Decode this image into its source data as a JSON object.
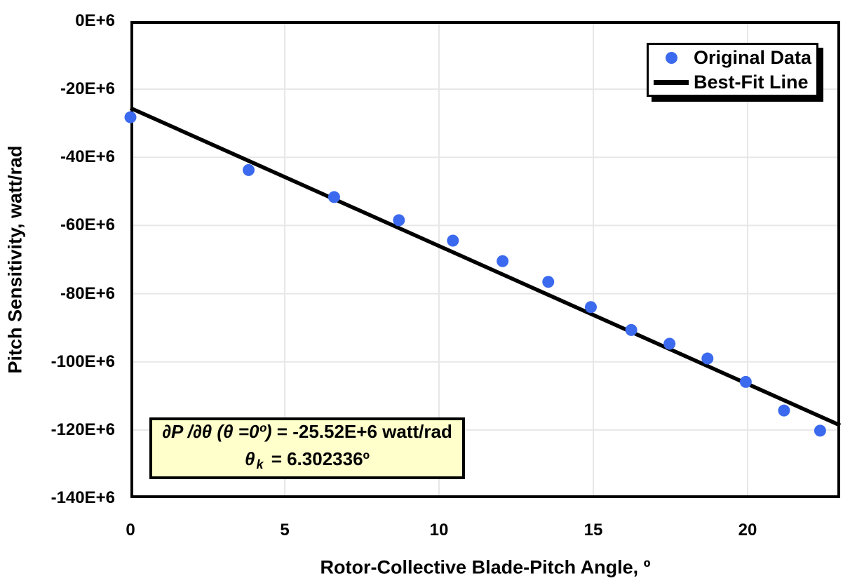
{
  "chart_data": {
    "type": "scatter",
    "title": "",
    "xlabel": "Rotor-Collective Blade-Pitch Angle, º",
    "ylabel": "Pitch Sensitivity, watt/rad",
    "xlim": [
      0,
      23
    ],
    "ylim": [
      -140000000,
      0
    ],
    "grid": true,
    "grid_color": "#e7e7e7",
    "x_ticks": {
      "values": [
        0,
        5,
        10,
        15,
        20
      ],
      "labels": [
        "0",
        "5",
        "10",
        "15",
        "20"
      ]
    },
    "y_ticks": {
      "values": [
        0,
        -20000000,
        -40000000,
        -60000000,
        -80000000,
        -100000000,
        -120000000,
        -140000000
      ],
      "labels": [
        "0E+6",
        "-20E+6",
        "-40E+6",
        "-60E+6",
        "-80E+6",
        "-100E+6",
        "-120E+6",
        "-140E+6"
      ]
    },
    "series": [
      {
        "name": "Original Data",
        "type": "scatter",
        "color": "#3c6aee",
        "points": [
          {
            "x": 0.0,
            "y": -28240000
          },
          {
            "x": 3.83,
            "y": -43730000
          },
          {
            "x": 6.6,
            "y": -51660000
          },
          {
            "x": 8.7,
            "y": -58440000
          },
          {
            "x": 10.45,
            "y": -64440000
          },
          {
            "x": 12.06,
            "y": -70460000
          },
          {
            "x": 13.54,
            "y": -76530000
          },
          {
            "x": 14.92,
            "y": -83940000
          },
          {
            "x": 16.23,
            "y": -90670000
          },
          {
            "x": 17.47,
            "y": -94710000
          },
          {
            "x": 18.7,
            "y": -99040000
          },
          {
            "x": 19.94,
            "y": -105900000
          },
          {
            "x": 21.18,
            "y": -114300000
          },
          {
            "x": 22.35,
            "y": -120200000
          }
        ]
      },
      {
        "name": "Best-Fit Line",
        "type": "line",
        "color": "#000000",
        "fit": {
          "sensitivity_at_zero_watt_per_rad": -25520000,
          "theta_k_deg": 6.302336
        },
        "x_range": [
          0,
          23
        ]
      }
    ],
    "legend": {
      "position": "top-right",
      "items": [
        {
          "label": "Original Data",
          "marker": "dot",
          "color": "#3c6aee"
        },
        {
          "label": "Best-Fit Line",
          "marker": "line",
          "color": "#000000"
        }
      ]
    },
    "annotation": {
      "bg_color": "#ffffcc",
      "line1_math": "∂P /∂θ (θ =0º)",
      "line1_value": " = -25.52E+6 watt/rad",
      "line2_symbol": "θ",
      "line2_sub": "k",
      "line2_value": " = 6.302336º"
    }
  }
}
